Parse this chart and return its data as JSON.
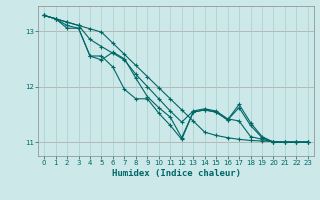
{
  "xlabel": "Humidex (Indice chaleur)",
  "background_color": "#cce8e8",
  "line_color": "#006666",
  "grid_color": "#aacece",
  "xlim": [
    -0.5,
    23.5
  ],
  "ylim": [
    10.75,
    13.45
  ],
  "yticks": [
    11,
    12,
    13
  ],
  "xticks": [
    0,
    1,
    2,
    3,
    4,
    5,
    6,
    7,
    8,
    9,
    10,
    11,
    12,
    13,
    14,
    15,
    16,
    17,
    18,
    19,
    20,
    21,
    22,
    23
  ],
  "series": [
    {
      "x": [
        0,
        1,
        2,
        3,
        4,
        5,
        6,
        7,
        8,
        9,
        10,
        11,
        12,
        13,
        14,
        15,
        16,
        17,
        18,
        19,
        20,
        21,
        22,
        23
      ],
      "y": [
        13.28,
        13.22,
        13.16,
        13.1,
        13.04,
        12.98,
        12.78,
        12.58,
        12.38,
        12.18,
        11.98,
        11.78,
        11.58,
        11.38,
        11.18,
        11.12,
        11.08,
        11.05,
        11.03,
        11.02,
        11.01,
        11.0,
        11.0,
        11.0
      ]
    },
    {
      "x": [
        0,
        1,
        2,
        3,
        4,
        5,
        6,
        7,
        8,
        9,
        10,
        11,
        12,
        13,
        14,
        15,
        16,
        17,
        18,
        19,
        20,
        21,
        22,
        23
      ],
      "y": [
        13.28,
        13.22,
        13.16,
        13.1,
        12.85,
        12.72,
        12.6,
        12.48,
        12.22,
        12.0,
        11.78,
        11.56,
        11.36,
        11.56,
        11.6,
        11.56,
        11.42,
        11.38,
        11.1,
        11.05,
        11.0,
        11.0,
        11.0,
        11.0
      ]
    },
    {
      "x": [
        0,
        1,
        2,
        3,
        4,
        5,
        6,
        7,
        8,
        9,
        10,
        11,
        12,
        13,
        14,
        15,
        16,
        17,
        18,
        19,
        20,
        21,
        22,
        23
      ],
      "y": [
        13.28,
        13.22,
        13.1,
        13.05,
        12.55,
        12.48,
        12.62,
        12.5,
        12.15,
        11.82,
        11.62,
        11.45,
        11.08,
        11.54,
        11.58,
        11.54,
        11.4,
        11.68,
        11.35,
        11.1,
        11.0,
        11.0,
        11.0,
        11.0
      ]
    },
    {
      "x": [
        0,
        1,
        2,
        3,
        4,
        5,
        6,
        7,
        8,
        9,
        10,
        11,
        12,
        13,
        14,
        15,
        16,
        17,
        18,
        19,
        20,
        21,
        22,
        23
      ],
      "y": [
        13.28,
        13.22,
        13.05,
        13.05,
        12.55,
        12.55,
        12.35,
        11.95,
        11.78,
        11.78,
        11.52,
        11.3,
        11.05,
        11.54,
        11.58,
        11.54,
        11.4,
        11.62,
        11.3,
        11.08,
        11.0,
        11.0,
        11.0,
        11.0
      ]
    }
  ]
}
